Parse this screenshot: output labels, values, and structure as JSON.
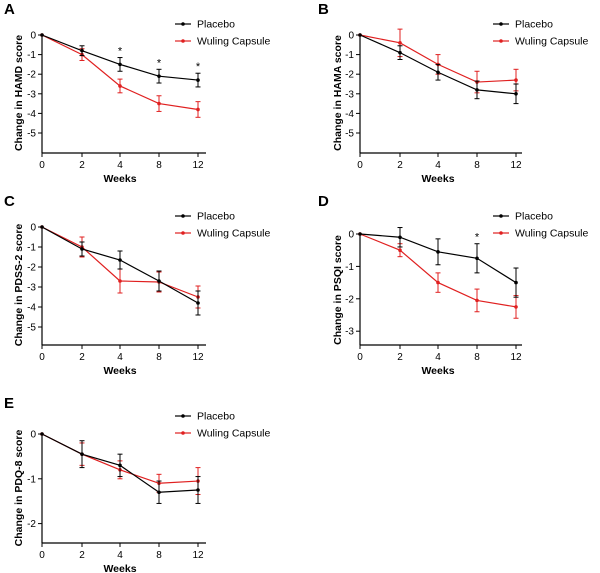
{
  "figure": {
    "series_colors": {
      "Placebo": "#000000",
      "Wuling Capsule": "#e02020"
    }
  },
  "chart_data": [
    {
      "panel": "A",
      "type": "line",
      "xlabel": "Weeks",
      "ylabel": "Change in HAMD score",
      "x": [
        0,
        2,
        4,
        8,
        12
      ],
      "x_tick_labels": [
        "0",
        "2",
        "4",
        "8",
        "12"
      ],
      "ylim": [
        -6,
        0
      ],
      "y_ticks": [
        0,
        -1,
        -2,
        -3,
        -4,
        -5
      ],
      "legend": [
        "Placebo",
        "Wuling Capsule"
      ],
      "legend_position": "top-right",
      "series": [
        {
          "name": "Placebo",
          "values": [
            0,
            -0.8,
            -1.5,
            -2.1,
            -2.3
          ],
          "error": [
            0,
            0.25,
            0.35,
            0.35,
            0.35
          ]
        },
        {
          "name": "Wuling Capsule",
          "values": [
            0,
            -1.0,
            -2.6,
            -3.5,
            -3.8
          ],
          "error": [
            0,
            0.3,
            0.35,
            0.4,
            0.4
          ]
        }
      ],
      "annotations": [
        {
          "x": 4,
          "text": "*"
        },
        {
          "x": 8,
          "text": "*"
        },
        {
          "x": 12,
          "text": "*"
        }
      ]
    },
    {
      "panel": "B",
      "type": "line",
      "xlabel": "Weeks",
      "ylabel": "Change in HAMA score",
      "x": [
        0,
        2,
        4,
        8,
        12
      ],
      "x_tick_labels": [
        "0",
        "2",
        "4",
        "8",
        "12"
      ],
      "ylim": [
        -6,
        0
      ],
      "y_ticks": [
        0,
        -1,
        -2,
        -3,
        -4,
        -5
      ],
      "legend": [
        "Placebo",
        "Wuling Capsule"
      ],
      "legend_position": "top-right",
      "series": [
        {
          "name": "Placebo",
          "values": [
            0,
            -0.9,
            -1.9,
            -2.8,
            -3.0
          ],
          "error": [
            0,
            0.35,
            0.4,
            0.45,
            0.5
          ]
        },
        {
          "name": "Wuling Capsule",
          "values": [
            0,
            -0.4,
            -1.5,
            -2.4,
            -2.3
          ],
          "error": [
            0,
            0.7,
            0.5,
            0.55,
            0.55
          ]
        }
      ],
      "annotations": []
    },
    {
      "panel": "C",
      "type": "line",
      "xlabel": "Weeks",
      "ylabel": "Change in PDSS-2 score",
      "x": [
        0,
        2,
        4,
        8,
        12
      ],
      "x_tick_labels": [
        "0",
        "2",
        "4",
        "8",
        "12"
      ],
      "ylim": [
        -6,
        0
      ],
      "y_ticks": [
        0,
        -1,
        -2,
        -3,
        -4,
        -5
      ],
      "legend": [
        "Placebo",
        "Wuling Capsule"
      ],
      "legend_position": "top-right",
      "series": [
        {
          "name": "Placebo",
          "values": [
            0,
            -1.1,
            -1.65,
            -2.7,
            -3.8
          ],
          "error": [
            0,
            0.35,
            0.45,
            0.5,
            0.6
          ]
        },
        {
          "name": "Wuling Capsule",
          "values": [
            0,
            -1.0,
            -2.7,
            -2.75,
            -3.5
          ],
          "error": [
            0,
            0.5,
            0.6,
            0.5,
            0.55
          ]
        }
      ],
      "annotations": []
    },
    {
      "panel": "D",
      "type": "line",
      "xlabel": "Weeks",
      "ylabel": "Change in PSQI score",
      "x": [
        0,
        2,
        4,
        8,
        12
      ],
      "x_tick_labels": [
        "0",
        "2",
        "4",
        "8",
        "12"
      ],
      "ylim": [
        -3.5,
        0
      ],
      "y_ticks": [
        0,
        -1,
        -2,
        -3
      ],
      "legend": [
        "Placebo",
        "Wuling Capsule"
      ],
      "legend_position": "top-right",
      "series": [
        {
          "name": "Placebo",
          "values": [
            0,
            -0.1,
            -0.55,
            -0.75,
            -1.5
          ],
          "error": [
            0,
            0.3,
            0.4,
            0.45,
            0.45
          ]
        },
        {
          "name": "Wuling Capsule",
          "values": [
            0,
            -0.5,
            -1.5,
            -2.05,
            -2.25
          ],
          "error": [
            0,
            0.2,
            0.3,
            0.35,
            0.35
          ]
        }
      ],
      "annotations": [
        {
          "x": 8,
          "text": "*"
        }
      ]
    },
    {
      "panel": "E",
      "type": "line",
      "xlabel": "Weeks",
      "ylabel": "Change in PDQ-8 score",
      "x": [
        0,
        2,
        4,
        8,
        12
      ],
      "x_tick_labels": [
        "0",
        "2",
        "4",
        "8",
        "12"
      ],
      "ylim": [
        -2.6,
        0
      ],
      "y_ticks": [
        0,
        -1,
        -2
      ],
      "legend": [
        "Placebo",
        "Wuling Capsule"
      ],
      "legend_position": "top-right",
      "series": [
        {
          "name": "Placebo",
          "values": [
            0,
            -0.45,
            -0.7,
            -1.3,
            -1.25
          ],
          "error": [
            0,
            0.3,
            0.25,
            0.25,
            0.3
          ]
        },
        {
          "name": "Wuling Capsule",
          "values": [
            0,
            -0.45,
            -0.8,
            -1.1,
            -1.05
          ],
          "error": [
            0,
            0.25,
            0.2,
            0.2,
            0.3
          ]
        }
      ],
      "annotations": []
    }
  ]
}
